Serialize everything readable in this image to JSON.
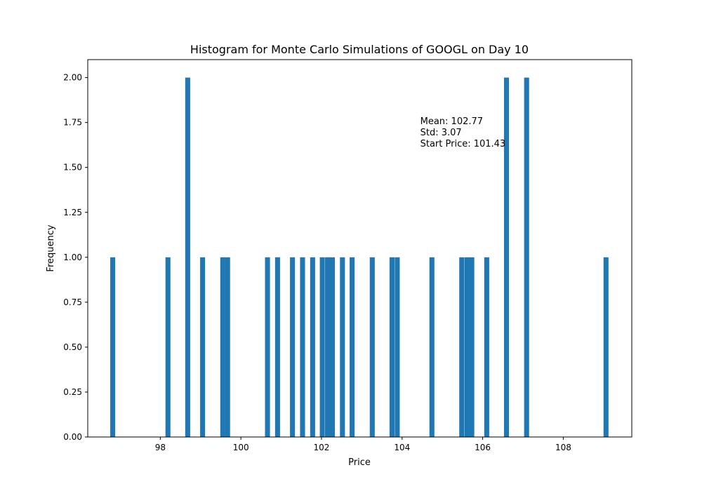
{
  "chart_data": {
    "type": "bar",
    "title": "Histogram for Monte Carlo Simulations of GOOGL on Day 10",
    "xlabel": "Price",
    "ylabel": "Frequency",
    "xlim": [
      96.2,
      109.7
    ],
    "ylim": [
      0,
      2.1
    ],
    "bin_width": 0.1235,
    "x_ticks": [
      98,
      100,
      102,
      104,
      106,
      108
    ],
    "x_tick_labels": [
      "98",
      "100",
      "102",
      "104",
      "106",
      "108"
    ],
    "y_ticks": [
      0,
      0.25,
      0.5,
      0.75,
      1.0,
      1.25,
      1.5,
      1.75,
      2.0
    ],
    "y_tick_labels": [
      "0.00",
      "0.25",
      "0.50",
      "0.75",
      "1.00",
      "1.25",
      "1.50",
      "1.75",
      "2.00"
    ],
    "bar_color": "#1f77b4",
    "grid": false,
    "bins": [
      {
        "x": 96.82,
        "count": 1
      },
      {
        "x": 98.19,
        "count": 1
      },
      {
        "x": 98.68,
        "count": 2
      },
      {
        "x": 99.05,
        "count": 1
      },
      {
        "x": 99.55,
        "count": 1
      },
      {
        "x": 99.67,
        "count": 1
      },
      {
        "x": 100.66,
        "count": 1
      },
      {
        "x": 100.91,
        "count": 1
      },
      {
        "x": 101.28,
        "count": 1
      },
      {
        "x": 101.53,
        "count": 1
      },
      {
        "x": 101.78,
        "count": 1
      },
      {
        "x": 102.02,
        "count": 1
      },
      {
        "x": 102.15,
        "count": 1
      },
      {
        "x": 102.27,
        "count": 1
      },
      {
        "x": 102.52,
        "count": 1
      },
      {
        "x": 102.76,
        "count": 1
      },
      {
        "x": 103.26,
        "count": 1
      },
      {
        "x": 103.75,
        "count": 1
      },
      {
        "x": 103.88,
        "count": 1
      },
      {
        "x": 104.74,
        "count": 1
      },
      {
        "x": 105.48,
        "count": 1
      },
      {
        "x": 105.61,
        "count": 1
      },
      {
        "x": 105.73,
        "count": 1
      },
      {
        "x": 106.1,
        "count": 1
      },
      {
        "x": 106.59,
        "count": 2
      },
      {
        "x": 107.09,
        "count": 2
      },
      {
        "x": 109.06,
        "count": 1
      }
    ],
    "annotation": {
      "lines": [
        "Mean: 102.77",
        "Std: 3.07",
        "Start Price: 101.43"
      ],
      "anchor": {
        "x": 104.45,
        "y": 1.74
      }
    }
  }
}
